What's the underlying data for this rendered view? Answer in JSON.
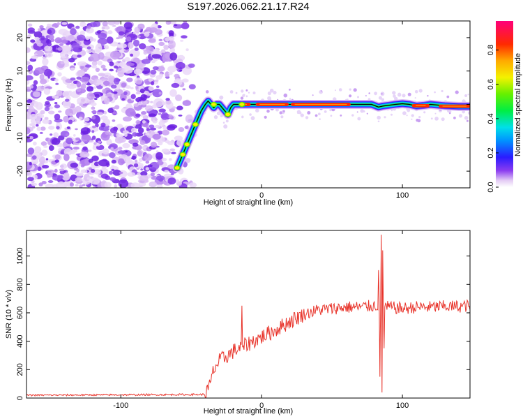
{
  "title": "S197.2026.062.21.17.R24",
  "chart_data": [
    {
      "type": "heatmap",
      "name": "spectrogram",
      "xlabel": "Height of straight line (km)",
      "ylabel": "Frequency (Hz)",
      "xlim": [
        -167,
        148
      ],
      "ylim": [
        -25,
        25
      ],
      "xticks": [
        -100,
        0,
        100
      ],
      "yticks": [
        -20,
        -10,
        0,
        10,
        20
      ],
      "noise_region_x": [
        -167,
        -50
      ],
      "ridge": {
        "x": [
          -60,
          -58,
          -55,
          -52,
          -49,
          -46,
          -43,
          -40,
          -38,
          -36,
          -34,
          -32,
          -30,
          -28,
          -26,
          -24,
          -22,
          -20,
          -18,
          -15,
          -12,
          -9,
          -5,
          0,
          10,
          20,
          30,
          40,
          50,
          60,
          70,
          75,
          78,
          80,
          83,
          86,
          90,
          95,
          100,
          105,
          110,
          115,
          120,
          130,
          140,
          148
        ],
        "y": [
          -19,
          -17,
          -14,
          -11,
          -8,
          -5,
          -2,
          0,
          1,
          0,
          -1,
          0,
          0,
          -1,
          -2,
          -3,
          -1,
          0,
          0,
          0,
          0,
          0,
          0,
          0,
          0,
          0,
          0,
          0,
          0,
          0,
          0,
          0,
          0,
          -0.3,
          -0.8,
          -0.5,
          -0.3,
          0,
          0.2,
          0,
          -0.5,
          -0.3,
          0,
          -0.4,
          -0.6,
          -0.6
        ]
      },
      "colorbar": {
        "label": "Normalized spectral amplitude",
        "ticks": [
          0.0,
          0.2,
          0.4,
          0.6,
          0.8
        ],
        "range": [
          0,
          0.97
        ]
      }
    },
    {
      "type": "line",
      "name": "snr",
      "xlabel": "Height of straight line (km)",
      "ylabel": "SNR (10 * v/v)",
      "xlim": [
        -167,
        148
      ],
      "ylim": [
        0,
        1180
      ],
      "xticks": [
        -100,
        0,
        100
      ],
      "yticks": [
        0,
        200,
        400,
        600,
        800,
        1000
      ],
      "color": "#e8332a",
      "trend": {
        "x": [
          -167,
          -40,
          -37,
          -34,
          -30,
          -20,
          -10,
          0,
          10,
          20,
          30,
          40,
          50,
          60,
          70,
          80,
          90,
          100,
          110,
          120,
          130,
          140,
          148
        ],
        "y": [
          20,
          25,
          80,
          200,
          260,
          330,
          380,
          430,
          480,
          540,
          590,
          620,
          630,
          640,
          640,
          650,
          640,
          630,
          640,
          640,
          645,
          645,
          650
        ]
      },
      "spikes": [
        {
          "x": -14,
          "y": 650
        },
        {
          "x": 83,
          "y": 900
        },
        {
          "x": 84,
          "y": 150
        },
        {
          "x": 85,
          "y": 1150
        },
        {
          "x": 85.5,
          "y": 40
        },
        {
          "x": 86,
          "y": 1040
        },
        {
          "x": 87,
          "y": 350
        }
      ]
    }
  ]
}
